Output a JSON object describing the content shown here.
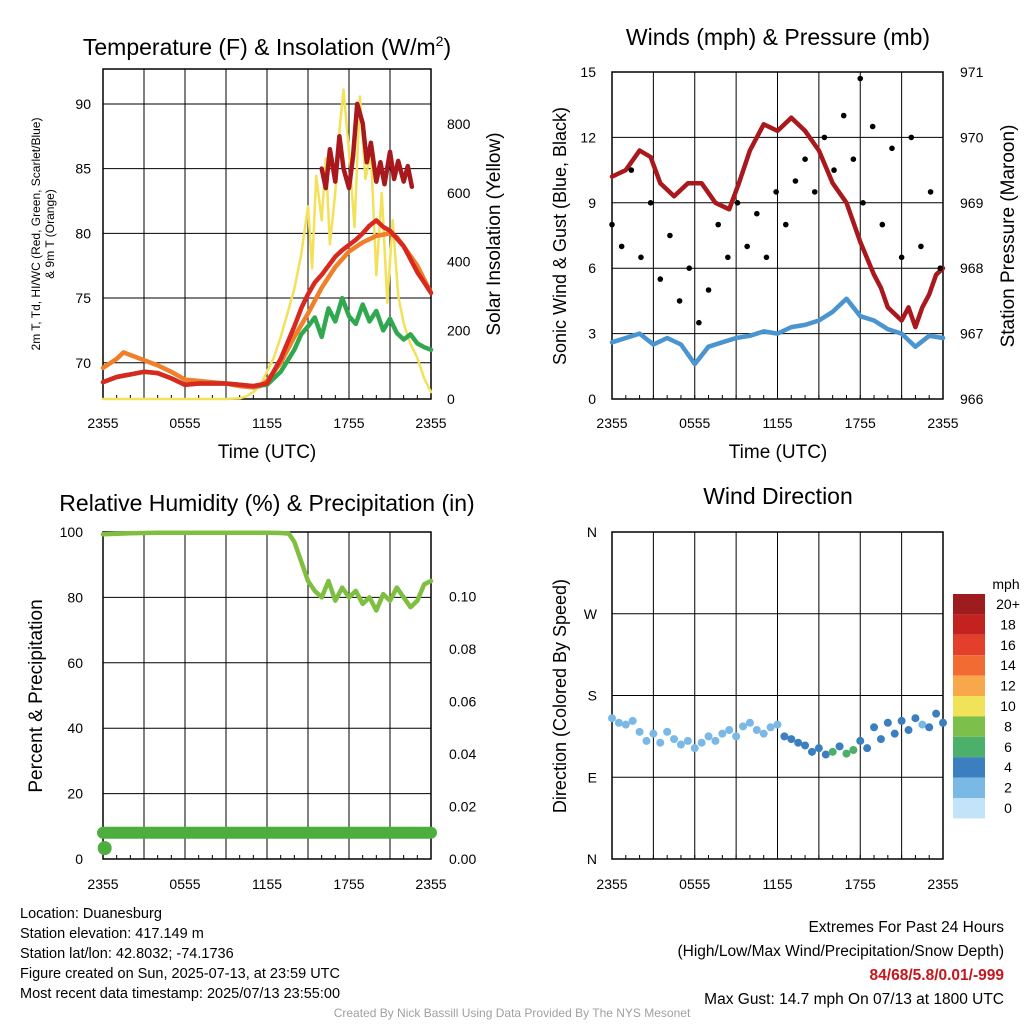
{
  "chart_data": [
    {
      "id": "temperature",
      "type": "line",
      "title": "Temperature (F) & Insolation (W/m2)",
      "title_parts": {
        "main": "Temperature (F) & Insolation (W/m",
        "sup": "2",
        "end": ")"
      },
      "xlabel": "Time (UTC)",
      "ylabel_left_1": "2m T, Td, HI/WC (Red, Green, Scarlet/Blue)",
      "ylabel_left_2": "& 9m T (Orange)",
      "ylabel_right": "Solar Insolation (Yellow)",
      "x_ticks": [
        "2355",
        "0555",
        "1155",
        "1755",
        "2355"
      ],
      "y_left_ticks": [
        70,
        75,
        80,
        85,
        90
      ],
      "ylim_left": [
        67.2,
        92.7
      ],
      "y_right_ticks": [
        0,
        200,
        400,
        600,
        800
      ],
      "ylim_right": [
        0,
        960
      ],
      "xlim_hours": [
        0,
        24
      ],
      "series": [
        {
          "color": "#f2e159",
          "axis": "right",
          "x": [
            0,
            2,
            4,
            6,
            8,
            9,
            10,
            10.5,
            11,
            11.5,
            12,
            12.5,
            13,
            13.5,
            14,
            14.5,
            15,
            15.3,
            15.6,
            16,
            16.3,
            16.6,
            17,
            17.3,
            17.6,
            18,
            18.4,
            18.8,
            19.2,
            19.6,
            20,
            20.4,
            20.8,
            21.2,
            21.6,
            22,
            22.5,
            23,
            23.5,
            24
          ],
          "values": [
            0,
            0,
            0,
            0,
            0,
            0,
            2,
            8,
            20,
            40,
            80,
            120,
            180,
            250,
            320,
            420,
            560,
            380,
            650,
            520,
            700,
            450,
            600,
            780,
            900,
            720,
            500,
            880,
            640,
            720,
            360,
            600,
            280,
            520,
            300,
            220,
            160,
            120,
            60,
            20
          ]
        },
        {
          "color": "#f07f2a",
          "axis": "left",
          "x": [
            0,
            1,
            1.5,
            2,
            3,
            4,
            5,
            6,
            7,
            8,
            9,
            10,
            11,
            11.5,
            12,
            13,
            14,
            15,
            16,
            17,
            18,
            19,
            20,
            21,
            21.5,
            22,
            23,
            24
          ],
          "values": [
            69.6,
            70.3,
            70.8,
            70.6,
            70.2,
            69.8,
            69.3,
            68.7,
            68.6,
            68.5,
            68.4,
            68.2,
            68.1,
            68.2,
            68.6,
            70.0,
            72.0,
            73.8,
            75.8,
            77.4,
            78.6,
            79.3,
            79.8,
            80.0,
            79.7,
            79.0,
            77.5,
            75.4
          ]
        },
        {
          "color": "#2fa84f",
          "axis": "left",
          "x": [
            0,
            1,
            2,
            3,
            4,
            5,
            6,
            7,
            8,
            9,
            10,
            11,
            12,
            13,
            14,
            14.5,
            15,
            15.5,
            16,
            16.5,
            17,
            17.5,
            18,
            18.5,
            19,
            19.5,
            20,
            20.5,
            21,
            21.5,
            22,
            22.5,
            23,
            23.5,
            24
          ],
          "values": [
            68.5,
            68.9,
            69.1,
            69.3,
            69.2,
            68.8,
            68.3,
            68.4,
            68.4,
            68.4,
            68.3,
            68.2,
            68.3,
            69.3,
            71.0,
            72.2,
            72.8,
            73.5,
            72.0,
            74.2,
            73.2,
            75.0,
            73.6,
            73.0,
            74.5,
            73.2,
            74.0,
            72.5,
            73.4,
            72.3,
            71.8,
            72.2,
            71.5,
            71.2,
            71.0
          ]
        },
        {
          "color": "#d8281f",
          "axis": "left",
          "x": [
            0,
            1,
            2,
            3,
            4,
            5,
            6,
            7,
            8,
            9,
            10,
            11,
            12,
            13,
            14,
            14.5,
            15,
            15.5,
            16,
            16.5,
            17,
            17.5,
            18,
            18.5,
            19,
            19.5,
            20,
            20.5,
            21,
            21.5,
            22,
            22.5,
            23,
            23.5,
            24
          ],
          "values": [
            68.5,
            68.9,
            69.1,
            69.3,
            69.2,
            68.8,
            68.3,
            68.4,
            68.4,
            68.4,
            68.3,
            68.2,
            68.4,
            70.3,
            72.8,
            74.2,
            75.3,
            76.2,
            76.8,
            77.5,
            78.2,
            78.7,
            79.1,
            79.5,
            80.0,
            80.6,
            81.0,
            80.5,
            80.2,
            79.6,
            79.0,
            78.0,
            77.0,
            76.2,
            75.4
          ]
        },
        {
          "color": "#a8181c",
          "axis": "left",
          "x": [
            16.0,
            16.3,
            16.6,
            17.0,
            17.3,
            17.6,
            18.0,
            18.3,
            18.6,
            19.0,
            19.3,
            19.6,
            20.0,
            20.3,
            20.6,
            21.0,
            21.3,
            21.6,
            22.0,
            22.3,
            22.6
          ],
          "values": [
            85.0,
            83.5,
            86.5,
            84.0,
            87.5,
            85.0,
            83.5,
            86.0,
            90.0,
            88.5,
            85.5,
            87.0,
            84.0,
            85.5,
            83.8,
            86.3,
            84.2,
            85.6,
            84.0,
            85.2,
            83.6
          ]
        }
      ]
    },
    {
      "id": "winds",
      "type": "line",
      "title": "Winds (mph) & Pressure (mb)",
      "xlabel": "Time (UTC)",
      "ylabel_left": "Sonic Wind & Gust (Blue, Black)",
      "ylabel_right": "Station Pressure (Maroon)",
      "x_ticks": [
        "2355",
        "0555",
        "1155",
        "1755",
        "2355"
      ],
      "y_left_ticks": [
        0,
        3,
        6,
        9,
        12,
        15
      ],
      "ylim_left": [
        0,
        15
      ],
      "y_right_ticks": [
        966,
        967,
        968,
        969,
        970,
        971
      ],
      "ylim_right": [
        966,
        971
      ],
      "xlim_hours": [
        0,
        24
      ],
      "series": [
        {
          "name_hidden": "pressure",
          "color": "#a8181c",
          "axis": "right",
          "x": [
            0,
            1,
            2,
            2.8,
            3.5,
            4.5,
            5.5,
            6.5,
            7.5,
            8.5,
            9.2,
            10,
            11,
            12,
            13,
            14,
            15,
            16,
            17,
            18,
            19,
            19.5,
            20,
            21,
            21.5,
            22,
            22.5,
            23,
            23.5,
            24
          ],
          "values": [
            969.4,
            969.5,
            969.8,
            969.7,
            969.3,
            969.1,
            969.3,
            969.3,
            969.0,
            968.9,
            969.3,
            969.8,
            970.2,
            970.1,
            970.3,
            970.1,
            969.8,
            969.3,
            969.0,
            968.4,
            967.9,
            967.7,
            967.4,
            967.2,
            967.4,
            967.1,
            967.4,
            967.6,
            967.9,
            968.0
          ]
        },
        {
          "name_hidden": "wind",
          "color": "#4a95cf",
          "axis": "left",
          "x": [
            0,
            1,
            2,
            3,
            4,
            5,
            6,
            7,
            8,
            9,
            10,
            11,
            12,
            13,
            14,
            15,
            16,
            17,
            18,
            19,
            20,
            21,
            22,
            23,
            24
          ],
          "values": [
            2.6,
            2.8,
            3.0,
            2.5,
            2.8,
            2.5,
            1.6,
            2.4,
            2.6,
            2.8,
            2.9,
            3.1,
            3.0,
            3.3,
            3.4,
            3.6,
            4.0,
            4.6,
            3.8,
            3.6,
            3.2,
            3.0,
            2.4,
            2.9,
            2.8
          ]
        },
        {
          "name_hidden": "gust",
          "color": "#000000",
          "axis": "left",
          "style": "points",
          "x": [
            0,
            0.7,
            1.4,
            2.1,
            2.8,
            3.5,
            4.2,
            4.9,
            5.6,
            6.3,
            7.0,
            7.7,
            8.4,
            9.1,
            9.8,
            10.5,
            11.2,
            11.9,
            12.6,
            13.3,
            14.0,
            14.7,
            15.4,
            16.1,
            16.8,
            17.5,
            18.0,
            18.2,
            18.9,
            19.6,
            20.3,
            21.0,
            21.7,
            22.4,
            23.1,
            23.8
          ],
          "values": [
            8.0,
            7.0,
            10.5,
            6.5,
            9.0,
            5.5,
            7.5,
            4.5,
            6.0,
            3.5,
            5.0,
            8.0,
            6.5,
            9.0,
            7.0,
            8.5,
            6.5,
            9.5,
            8.0,
            10.0,
            11.0,
            9.5,
            12.0,
            10.5,
            13.0,
            11.0,
            14.7,
            9.0,
            12.5,
            8.0,
            11.5,
            6.5,
            12.0,
            7.0,
            9.5,
            6.0
          ]
        }
      ]
    },
    {
      "id": "humidity",
      "type": "line",
      "title": "Relative Humidity (%) & Precipitation (in)",
      "xlabel": "",
      "ylabel_left": "Percent & Precipitation",
      "x_ticks": [
        "2355",
        "0555",
        "1155",
        "1755",
        "2355"
      ],
      "y_left_ticks": [
        0,
        20,
        40,
        60,
        80,
        100
      ],
      "ylim_left": [
        0,
        100
      ],
      "y_right_ticks": [
        "0.00",
        "0.02",
        "0.04",
        "0.06",
        "0.08",
        "0.10"
      ],
      "ylim_right": [
        0,
        0.1245
      ],
      "xlim_hours": [
        0,
        24
      ],
      "series": [
        {
          "color": "#7fbf3f",
          "axis": "left",
          "x": [
            0,
            2,
            4,
            6,
            8,
            10,
            12,
            13,
            13.6,
            14,
            14.5,
            15,
            15.5,
            16,
            16.5,
            17,
            17.5,
            18,
            18.5,
            19,
            19.5,
            20,
            20.5,
            21,
            21.5,
            22,
            22.5,
            23,
            23.5,
            24
          ],
          "values": [
            99.3,
            99.6,
            99.8,
            99.8,
            99.8,
            99.8,
            99.8,
            99.7,
            99.5,
            97,
            91,
            85,
            82,
            80,
            85,
            79,
            83,
            80,
            82,
            78,
            80,
            76,
            81,
            79,
            83,
            80,
            77,
            79,
            84,
            85
          ]
        },
        {
          "color": "#4caf3d",
          "axis": "right",
          "style": "thick",
          "x": [
            0,
            24
          ],
          "values": [
            0.01,
            0.01
          ]
        }
      ],
      "points": [
        {
          "x": 0.05,
          "value": 0.003,
          "axis": "right",
          "color": "#4caf3d"
        }
      ]
    },
    {
      "id": "direction",
      "type": "scatter",
      "title": "Wind Direction",
      "ylabel": "Direction (Colored By Speed)",
      "x_ticks": [
        "2355",
        "0555",
        "1155",
        "1755",
        "2355"
      ],
      "y_ticks": [
        "N",
        "E",
        "S",
        "W",
        "N"
      ],
      "y_tick_values": [
        0,
        90,
        180,
        270,
        360
      ],
      "ylim": [
        0,
        360
      ],
      "xlim_hours": [
        0,
        24
      ],
      "x": [
        0,
        0.5,
        1,
        1.5,
        2,
        2.5,
        3,
        3.5,
        4,
        4.5,
        5,
        5.5,
        6,
        6.5,
        7,
        7.5,
        8,
        8.5,
        9,
        9.5,
        10,
        10.5,
        11,
        11.5,
        12,
        12.5,
        13,
        13.5,
        14,
        14.5,
        15,
        15.5,
        16,
        16.5,
        17,
        17.5,
        18,
        18.5,
        19,
        19.5,
        20,
        20.5,
        21,
        21.5,
        22,
        22.5,
        23,
        23.5,
        24
      ],
      "values": [
        155,
        150,
        148,
        152,
        140,
        130,
        138,
        128,
        140,
        132,
        126,
        130,
        122,
        128,
        135,
        130,
        138,
        142,
        135,
        146,
        150,
        142,
        138,
        145,
        148,
        135,
        132,
        128,
        125,
        118,
        122,
        115,
        118,
        124,
        116,
        120,
        130,
        122,
        145,
        132,
        150,
        138,
        152,
        142,
        155,
        148,
        145,
        160,
        150
      ],
      "speeds": [
        2,
        2,
        2,
        1,
        2,
        2,
        2,
        2,
        2,
        1,
        2,
        2,
        2,
        1,
        2,
        2,
        2,
        2,
        2,
        2,
        2,
        2,
        2,
        2,
        2,
        3,
        4,
        3,
        4,
        4,
        4,
        4,
        5,
        4,
        6,
        5,
        4,
        3,
        4,
        3,
        4,
        3,
        4,
        3,
        3,
        2,
        3,
        3,
        3
      ],
      "legend": {
        "unit": "mph",
        "labels": [
          "20+",
          "18",
          "16",
          "14",
          "12",
          "10",
          "8",
          "6",
          "4",
          "2",
          "0"
        ],
        "colors": [
          "#9e1b1e",
          "#c4221f",
          "#e2402c",
          "#f26b33",
          "#f9a74b",
          "#f0e35a",
          "#7cbf4a",
          "#4caf6a",
          "#3b7fc0",
          "#7ab8e6",
          "#c2e3f8"
        ]
      }
    }
  ],
  "footer": {
    "location": "Location: Duanesburg",
    "elevation": "Station elevation: 417.149 m",
    "latlon": "Station lat/lon: 42.8032; -74.1736",
    "created": "Figure created on Sun, 2025-07-13, at 23:59 UTC",
    "recent": "Most recent data timestamp: 2025/07/13 23:55:00",
    "extremes_title": "Extremes For Past 24 Hours",
    "extremes_legend": "(High/Low/Max Wind/Precipitation/Snow Depth)",
    "extremes_values": "84/68/5.8/0.01/-999",
    "max_gust": "Max Gust: 14.7 mph On 07/13 at 1800 UTC",
    "credit": "Created By Nick Bassill Using Data Provided By The NYS Mesonet"
  }
}
